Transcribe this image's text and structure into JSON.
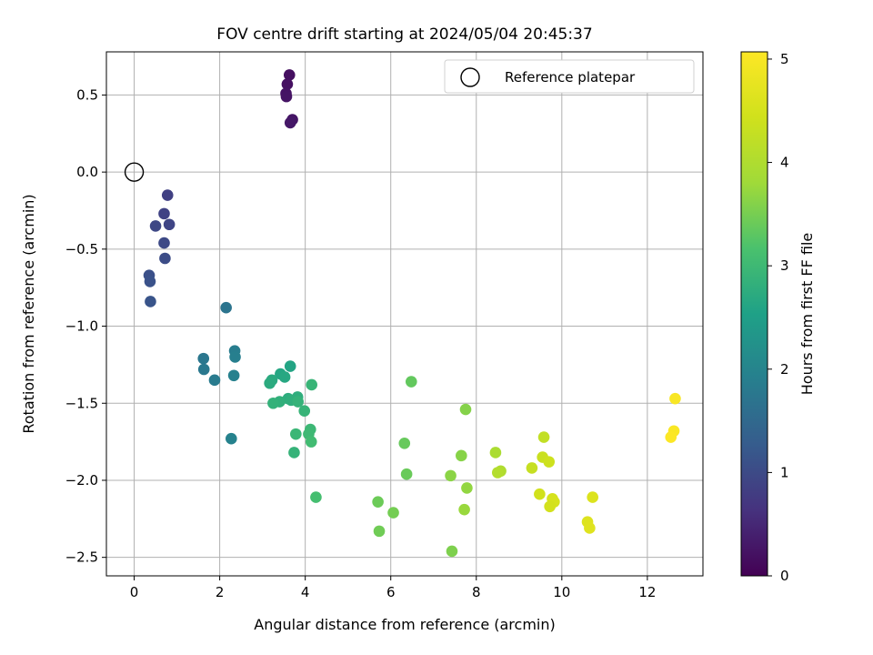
{
  "chart_data": {
    "type": "scatter",
    "title": "FOV centre drift starting at 2024/05/04 20:45:37",
    "xlabel": "Angular distance from reference (arcmin)",
    "ylabel": "Rotation from reference (arcmin)",
    "xlim": [
      -0.65,
      13.3
    ],
    "ylim": [
      -2.62,
      0.78
    ],
    "xticks": [
      0,
      2,
      4,
      6,
      8,
      10,
      12
    ],
    "xtick_labels": [
      "0",
      "2",
      "4",
      "6",
      "8",
      "10",
      "12"
    ],
    "yticks": [
      0.5,
      0.0,
      -0.5,
      -1.0,
      -1.5,
      -2.0,
      -2.5
    ],
    "ytick_labels": [
      "0.5",
      "0.0",
      "−0.5",
      "−1.0",
      "−1.5",
      "−2.0",
      "−2.5"
    ],
    "grid": true,
    "legend": {
      "placement": "top-right",
      "entries": [
        "Reference platepar"
      ]
    },
    "reference_point": {
      "x": 0,
      "y": 0
    },
    "colorbar": {
      "label": "Hours from first FF file",
      "range": [
        0,
        5.07
      ],
      "ticks": [
        0,
        1,
        2,
        3,
        4,
        5
      ],
      "tick_labels": [
        "0",
        "1",
        "2",
        "3",
        "4",
        "5"
      ],
      "colormap": "viridis"
    },
    "series": [
      {
        "x": [
          3.63,
          3.58,
          3.55,
          3.56,
          3.7,
          3.65,
          0.78,
          0.7,
          0.82,
          0.5,
          0.7,
          0.72,
          0.35,
          0.37,
          0.38,
          2.15,
          1.62,
          1.63,
          1.88,
          2.35,
          2.36,
          2.33,
          2.27,
          3.65,
          3.42,
          3.52,
          3.22,
          3.17,
          3.6,
          3.82,
          3.67,
          3.4,
          3.25,
          3.83,
          3.98,
          4.15,
          3.78,
          4.12,
          4.08,
          4.14,
          3.74,
          4.25,
          6.48,
          6.32,
          6.37,
          5.7,
          5.73,
          6.06,
          7.75,
          7.65,
          7.4,
          7.43,
          7.78,
          7.72,
          8.45,
          8.57,
          8.5,
          9.58,
          9.3,
          9.55,
          9.7,
          9.48,
          9.78,
          9.82,
          9.72,
          10.72,
          10.6,
          10.65,
          12.65,
          12.62,
          12.55
        ],
        "y": [
          0.63,
          0.57,
          0.51,
          0.49,
          0.34,
          0.32,
          -0.15,
          -0.27,
          -0.34,
          -0.35,
          -0.46,
          -0.56,
          -0.67,
          -0.71,
          -0.84,
          -0.88,
          -1.21,
          -1.28,
          -1.35,
          -1.16,
          -1.2,
          -1.32,
          -1.73,
          -1.26,
          -1.31,
          -1.33,
          -1.35,
          -1.37,
          -1.47,
          -1.46,
          -1.48,
          -1.49,
          -1.5,
          -1.49,
          -1.55,
          -1.38,
          -1.7,
          -1.67,
          -1.7,
          -1.75,
          -1.82,
          -2.11,
          -1.36,
          -1.76,
          -1.96,
          -2.14,
          -2.33,
          -2.21,
          -1.54,
          -1.84,
          -1.97,
          -2.46,
          -2.05,
          -2.19,
          -1.82,
          -1.94,
          -1.95,
          -1.72,
          -1.92,
          -1.85,
          -1.88,
          -2.09,
          -2.12,
          -2.14,
          -2.17,
          -2.11,
          -2.27,
          -2.31,
          -1.47,
          -1.68,
          -1.72
        ],
        "hours": [
          0.18,
          0.2,
          0.22,
          0.24,
          0.26,
          0.28,
          0.85,
          0.88,
          0.92,
          0.95,
          0.98,
          1.02,
          1.08,
          1.12,
          1.15,
          1.7,
          1.75,
          1.78,
          1.82,
          1.86,
          1.9,
          1.93,
          1.96,
          2.6,
          2.63,
          2.66,
          2.7,
          2.72,
          2.75,
          2.78,
          2.8,
          2.82,
          2.85,
          2.87,
          2.9,
          2.92,
          2.95,
          2.97,
          3.0,
          3.05,
          2.88,
          3.1,
          3.35,
          3.38,
          3.4,
          3.42,
          3.45,
          3.48,
          3.6,
          3.62,
          3.65,
          3.55,
          3.7,
          3.75,
          3.95,
          4.0,
          4.05,
          4.25,
          4.3,
          4.35,
          4.4,
          4.45,
          4.5,
          4.52,
          4.48,
          4.6,
          4.62,
          4.65,
          5.0,
          5.02,
          5.05
        ]
      }
    ]
  }
}
